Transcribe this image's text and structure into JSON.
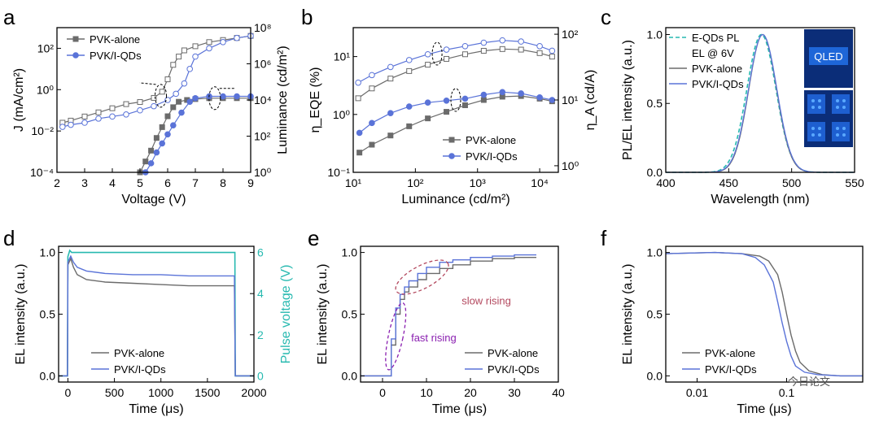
{
  "colors": {
    "pvk": "#6b6b6b",
    "qds": "#5a73d8",
    "cyan": "#27b9b0",
    "purple": "#8a1fb0",
    "rose": "#b3485e",
    "photo_bg": "#0b2d78",
    "photo_glow": "#5aa8ff"
  },
  "watermark": "今日论文",
  "chart_data": [
    {
      "id": "a",
      "letter": "a",
      "type": "line",
      "xlabel": "Voltage (V)",
      "ylabel_left": "J (mA/cm²)",
      "ylabel_right": "Luminance (cd/m²)",
      "xlim": [
        2,
        9
      ],
      "ylim_left_log10": [
        -4,
        3
      ],
      "ylim_right_log10": [
        0,
        8
      ],
      "x_ticks": [
        "2",
        "3",
        "4",
        "5",
        "6",
        "7",
        "8",
        "9"
      ],
      "y_ticks_left": [
        "10⁻⁴",
        "10⁻²",
        "10⁰",
        "10²"
      ],
      "y_ticks_right": [
        "10⁰",
        "10²",
        "10⁴",
        "10⁶",
        "10⁸"
      ],
      "legend": [
        "PVK-alone",
        "PVK/I-QDs"
      ],
      "series": [
        {
          "name": "PVK-alone J",
          "axis": "left",
          "marker": "square-open",
          "color_key": "pvk",
          "x": [
            2.2,
            2.5,
            3.0,
            3.5,
            4.0,
            4.5,
            5.0,
            5.5,
            5.8,
            6.0,
            6.2,
            6.4,
            6.6,
            7.0,
            7.5,
            8.0,
            8.5,
            9.0
          ],
          "log10": [
            -1.6,
            -1.5,
            -1.3,
            -1.1,
            -0.9,
            -0.7,
            -0.6,
            -0.4,
            -0.1,
            0.5,
            1.2,
            1.6,
            1.9,
            2.1,
            2.3,
            2.4,
            2.5,
            2.6
          ]
        },
        {
          "name": "PVK/I-QDs J",
          "axis": "left",
          "marker": "circle-open",
          "color_key": "qds",
          "x": [
            2.2,
            2.5,
            3.0,
            3.5,
            4.0,
            4.5,
            5.0,
            5.5,
            6.0,
            6.3,
            6.6,
            6.8,
            7.0,
            7.5,
            8.0,
            8.5,
            9.0
          ],
          "log10": [
            -1.8,
            -1.7,
            -1.6,
            -1.4,
            -1.3,
            -1.2,
            -1.0,
            -0.8,
            -0.5,
            -0.2,
            0.3,
            1.0,
            1.6,
            2.0,
            2.3,
            2.5,
            2.6
          ]
        },
        {
          "name": "PVK-alone L",
          "axis": "right",
          "marker": "square-filled",
          "color_key": "pvk",
          "x": [
            5.0,
            5.2,
            5.4,
            5.6,
            5.8,
            6.0,
            6.2,
            6.4,
            6.7,
            7.0,
            7.5,
            8.0,
            8.5,
            9.0
          ],
          "log10": [
            0.0,
            0.6,
            1.2,
            1.9,
            2.5,
            3.1,
            3.6,
            3.9,
            4.0,
            4.05,
            4.1,
            4.1,
            4.1,
            4.1
          ]
        },
        {
          "name": "PVK/I-QDs L",
          "axis": "right",
          "marker": "circle-filled",
          "color_key": "qds",
          "x": [
            5.2,
            5.4,
            5.6,
            5.8,
            6.0,
            6.2,
            6.5,
            6.8,
            7.0,
            7.5,
            8.0,
            8.5,
            9.0
          ],
          "log10": [
            0.0,
            0.5,
            1.1,
            1.6,
            2.1,
            2.6,
            3.3,
            3.9,
            4.1,
            4.2,
            4.2,
            4.2,
            4.2
          ]
        }
      ]
    },
    {
      "id": "b",
      "letter": "b",
      "type": "line",
      "xlabel": "Luminance (cd/m²)",
      "ylabel_left": "η_EQE (%)",
      "ylabel_right": "η_A (cd/A)",
      "xlim_log10": [
        1,
        4.3
      ],
      "ylim_left_log10": [
        -1,
        1.5
      ],
      "ylim_right_log10": [
        -0.1,
        2.1
      ],
      "x_ticks": [
        "10¹",
        "10²",
        "10³",
        "10⁴"
      ],
      "y_ticks_left": [
        "10⁻¹",
        "10⁰",
        "10¹"
      ],
      "y_ticks_right": [
        "10⁰",
        "10¹",
        "10²"
      ],
      "legend": [
        "PVK-alone",
        "PVK/I-QDs"
      ],
      "series": [
        {
          "name": "PVK-alone EQE",
          "axis": "left",
          "marker": "square-open",
          "color_key": "pvk",
          "xlog": [
            1.08,
            1.3,
            1.6,
            1.9,
            2.2,
            2.5,
            2.8,
            3.1,
            3.4,
            3.7,
            4.0,
            4.2
          ],
          "log10": [
            0.28,
            0.45,
            0.62,
            0.75,
            0.86,
            0.96,
            1.04,
            1.1,
            1.13,
            1.12,
            1.06,
            1.0
          ]
        },
        {
          "name": "PVK/I-QDs EQE",
          "axis": "left",
          "marker": "circle-open",
          "color_key": "qds",
          "xlog": [
            1.08,
            1.3,
            1.6,
            1.9,
            2.2,
            2.5,
            2.8,
            3.1,
            3.4,
            3.7,
            4.0,
            4.2
          ],
          "log10": [
            0.55,
            0.68,
            0.82,
            0.94,
            1.04,
            1.12,
            1.18,
            1.24,
            1.28,
            1.26,
            1.18,
            1.1
          ]
        },
        {
          "name": "PVK-alone ηA",
          "axis": "right",
          "marker": "square-filled",
          "color_key": "pvk",
          "xlog": [
            1.1,
            1.3,
            1.6,
            1.9,
            2.2,
            2.5,
            2.8,
            3.1,
            3.4,
            3.7,
            4.0,
            4.2
          ],
          "log10": [
            0.2,
            0.32,
            0.46,
            0.6,
            0.72,
            0.82,
            0.92,
            1.0,
            1.05,
            1.06,
            1.02,
            0.98
          ]
        },
        {
          "name": "PVK/I-QDs ηA",
          "axis": "right",
          "marker": "circle-filled",
          "color_key": "qds",
          "xlog": [
            1.1,
            1.3,
            1.6,
            1.9,
            2.2,
            2.5,
            2.8,
            3.1,
            3.4,
            3.7,
            4.0,
            4.2
          ],
          "log10": [
            0.5,
            0.65,
            0.8,
            0.9,
            0.96,
            0.99,
            1.02,
            1.08,
            1.12,
            1.1,
            1.04,
            1.0
          ]
        }
      ]
    },
    {
      "id": "c",
      "letter": "c",
      "type": "line",
      "xlabel": "Wavelength (nm)",
      "ylabel": "PL/EL intensity (a.u.)",
      "xlim": [
        400,
        550
      ],
      "ylim": [
        0,
        1.05
      ],
      "x_ticks": [
        "400",
        "450",
        "500",
        "550"
      ],
      "y_ticks": [
        "0.0",
        "0.5",
        "1.0"
      ],
      "legend": [
        "E-QDs PL",
        "EL @ 6V",
        "PVK-alone",
        "PVK/I-QDs"
      ],
      "photo_label": "QLED",
      "series": [
        {
          "name": "E-QDs PL",
          "style": "dashed",
          "color_key": "cyan",
          "center": 476,
          "sigma": 11.5,
          "peak": 1.0
        },
        {
          "name": "PVK-alone",
          "style": "solid",
          "color_key": "pvk",
          "center": 477,
          "sigma": 11.0,
          "peak": 1.0
        },
        {
          "name": "PVK/I-QDs",
          "style": "solid",
          "color_key": "qds",
          "center": 477,
          "sigma": 11.2,
          "peak": 1.0
        }
      ]
    },
    {
      "id": "d",
      "letter": "d",
      "type": "line",
      "xlabel": "Time (μs)",
      "ylabel_left": "EL intensity (a.u.)",
      "ylabel_right": "Pulse voltage (V)",
      "xlim": [
        -100,
        2000
      ],
      "ylim_left": [
        -0.05,
        1.05
      ],
      "ylim_right": [
        -0.3,
        6.3
      ],
      "x_ticks": [
        "0",
        "500",
        "1000",
        "1500",
        "2000"
      ],
      "y_ticks_left": [
        "0.0",
        "0.5",
        "1.0"
      ],
      "y_ticks_right": [
        "0",
        "2",
        "4",
        "6"
      ],
      "legend": [
        "PVK-alone",
        "PVK/I-QDs"
      ],
      "series": [
        {
          "name": "Pulse voltage",
          "axis": "right",
          "color_key": "cyan",
          "x": [
            -100,
            -5,
            0,
            20,
            40,
            1790,
            1795,
            1800,
            2000
          ],
          "y": [
            0,
            0,
            5.8,
            6.1,
            6.0,
            6.0,
            6.0,
            0,
            0
          ]
        },
        {
          "name": "PVK-alone",
          "axis": "left",
          "color_key": "pvk",
          "x": [
            -100,
            -5,
            0,
            30,
            60,
            100,
            200,
            400,
            700,
            1000,
            1300,
            1500,
            1790,
            1800,
            2000
          ],
          "y": [
            0.0,
            0.0,
            0.9,
            0.95,
            0.88,
            0.82,
            0.78,
            0.76,
            0.75,
            0.74,
            0.73,
            0.73,
            0.73,
            0.0,
            0.0
          ]
        },
        {
          "name": "PVK/I-QDs",
          "axis": "left",
          "color_key": "qds",
          "x": [
            -100,
            -5,
            0,
            30,
            60,
            100,
            200,
            400,
            700,
            1000,
            1300,
            1500,
            1790,
            1800,
            2000
          ],
          "y": [
            0.0,
            0.0,
            0.92,
            0.97,
            0.92,
            0.88,
            0.85,
            0.83,
            0.82,
            0.82,
            0.81,
            0.81,
            0.81,
            0.0,
            0.0
          ]
        }
      ]
    },
    {
      "id": "e",
      "letter": "e",
      "type": "line",
      "xlabel": "Time (μs)",
      "ylabel": "EL intensity (a.u.)",
      "xlim": [
        -5,
        40
      ],
      "ylim": [
        -0.05,
        1.05
      ],
      "x_ticks": [
        "0",
        "10",
        "20",
        "30",
        "40"
      ],
      "y_ticks": [
        "0.0",
        "0.5",
        "1.0"
      ],
      "legend": [
        "PVK-alone",
        "PVK/I-QDs"
      ],
      "annotations": [
        "fast rising",
        "slow rising"
      ],
      "series": [
        {
          "name": "PVK-alone",
          "color_key": "pvk",
          "x": [
            -5,
            1.5,
            2,
            3,
            4,
            5,
            6,
            8,
            10,
            13,
            16,
            20,
            25,
            30,
            35
          ],
          "y": [
            0,
            0,
            0.25,
            0.5,
            0.62,
            0.68,
            0.72,
            0.78,
            0.83,
            0.87,
            0.9,
            0.93,
            0.95,
            0.96,
            0.96
          ]
        },
        {
          "name": "PVK/I-QDs",
          "color_key": "qds",
          "x": [
            -5,
            1.5,
            2,
            3,
            4,
            5,
            6,
            8,
            10,
            13,
            16,
            20,
            25,
            30,
            35
          ],
          "y": [
            0,
            0,
            0.3,
            0.55,
            0.66,
            0.72,
            0.77,
            0.83,
            0.88,
            0.92,
            0.94,
            0.96,
            0.97,
            0.98,
            0.98
          ]
        }
      ]
    },
    {
      "id": "f",
      "letter": "f",
      "type": "line",
      "xlabel": "Time (μs)",
      "ylabel": "EL intensity (a.u.)",
      "xlim_log10": [
        -2.35,
        -0.15
      ],
      "ylim": [
        -0.05,
        1.05
      ],
      "x_ticks": [
        "0.01",
        "0.1"
      ],
      "y_ticks": [
        "0.0",
        "0.5",
        "1.0"
      ],
      "legend": [
        "PVK-alone",
        "PVK/I-QDs"
      ],
      "series": [
        {
          "name": "PVK-alone",
          "color_key": "pvk",
          "xlog": [
            -2.35,
            -1.8,
            -1.5,
            -1.3,
            -1.2,
            -1.1,
            -1.05,
            -1.0,
            -0.95,
            -0.9,
            -0.85,
            -0.75,
            -0.6,
            -0.4,
            -0.15
          ],
          "y": [
            0.99,
            1.0,
            0.99,
            0.97,
            0.93,
            0.82,
            0.68,
            0.5,
            0.33,
            0.2,
            0.11,
            0.04,
            0.01,
            0.0,
            0.0
          ]
        },
        {
          "name": "PVK/I-QDs",
          "color_key": "qds",
          "xlog": [
            -2.35,
            -1.8,
            -1.5,
            -1.35,
            -1.25,
            -1.15,
            -1.1,
            -1.05,
            -1.0,
            -0.95,
            -0.9,
            -0.8,
            -0.65,
            -0.4,
            -0.15
          ],
          "y": [
            0.99,
            1.0,
            0.99,
            0.96,
            0.9,
            0.76,
            0.6,
            0.43,
            0.28,
            0.16,
            0.08,
            0.03,
            0.01,
            0.0,
            0.0
          ]
        }
      ]
    }
  ]
}
